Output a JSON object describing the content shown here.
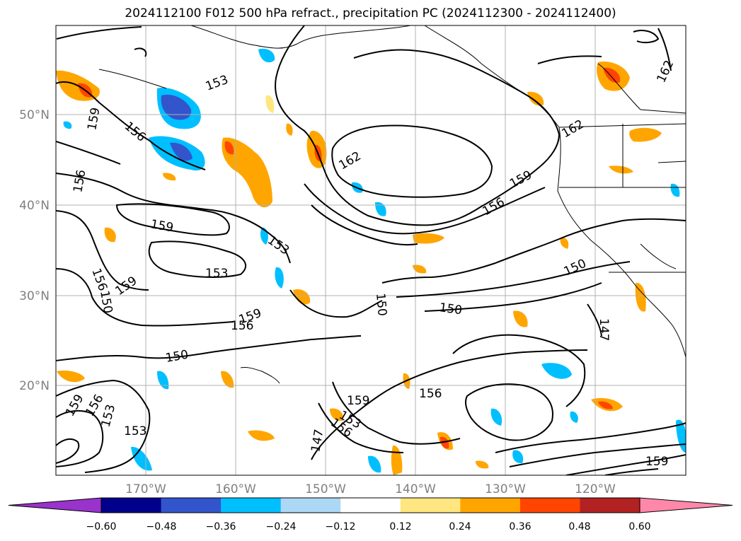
{
  "title": "2024112100 F012 500 hPa refract., precipitation PC (2024112300 - 2024112400)",
  "lat_labels": [
    "50°N",
    "40°N",
    "30°N",
    "20°N"
  ],
  "lon_labels": [
    "170°W",
    "160°W",
    "150°W",
    "140°W",
    "130°W",
    "120°W"
  ],
  "contour_labels": [
    "153",
    "159",
    "156",
    "156",
    "162",
    "159",
    "156",
    "159",
    "153",
    "153",
    "156",
    "150",
    "159",
    "159",
    "156",
    "150",
    "150",
    "150",
    "159",
    "156",
    "153",
    "153",
    "147",
    "159",
    "156",
    "153",
    "156",
    "159",
    "150",
    "147",
    "162",
    "162"
  ],
  "colorbar": {
    "ticks": [
      "−0.60",
      "−0.48",
      "−0.36",
      "−0.24",
      "−0.12",
      "0.12",
      "0.24",
      "0.36",
      "0.48",
      "0.60"
    ],
    "colors": [
      "#9933cc",
      "#00008b",
      "#3355cc",
      "#00bfff",
      "#add8f5",
      "#ffffff",
      "#ffe680",
      "#ffa500",
      "#ff4500",
      "#b22222",
      "#ff88aa"
    ]
  }
}
